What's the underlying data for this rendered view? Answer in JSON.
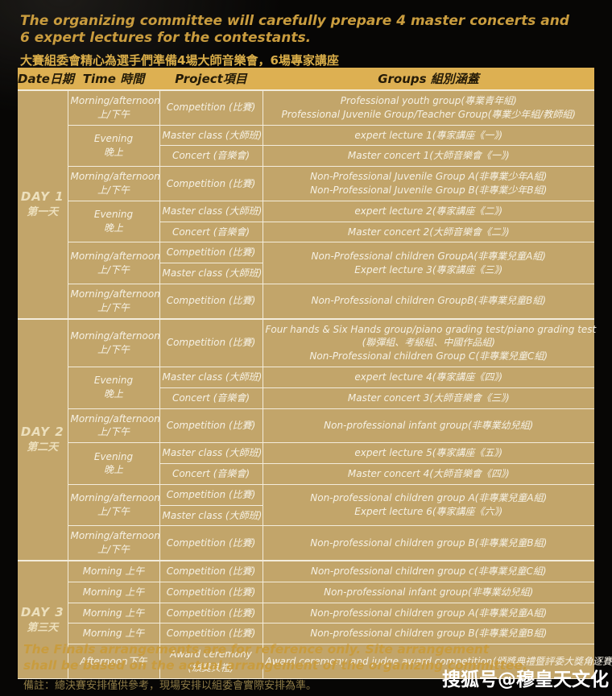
{
  "title": {
    "en_line1": "The organizing committee will carefully prepare 4 master concerts and",
    "en_line2": "6 expert lectures for the contestants.",
    "zh": "大賽組委會精心為選手們準備4場大師音樂會，6場專家講座"
  },
  "table": {
    "headers": [
      "Date日期",
      "Time 時間",
      "Project項目",
      "Groups 組別涵蓋"
    ],
    "days": [
      {
        "label_en": "DAY 1",
        "label_zh": "第一天",
        "rows": [
          {
            "time": {
              "lines": [
                "Morning/afternoon",
                "上/下午"
              ]
            },
            "project": {
              "lines": [
                "Competition (比賽)"
              ]
            },
            "groups": {
              "lines": [
                "Professional youth group(專業青年組)",
                "Professional Juvenile Group/Teacher Group(專業少年組/教師組)"
              ]
            }
          },
          {
            "time": {
              "lines": [
                "Evening",
                "晚上"
              ],
              "span": 2
            },
            "project": {
              "lines": [
                "Master class (大師班)"
              ]
            },
            "groups": {
              "lines": [
                "expert lecture 1(專家講座《一》)"
              ]
            }
          },
          {
            "time": null,
            "project": {
              "lines": [
                "Concert (音樂會)"
              ]
            },
            "groups": {
              "lines": [
                "Master concert 1(大師音樂會《一》)"
              ]
            }
          },
          {
            "time": {
              "lines": [
                "Morning/afternoon",
                "上/下午"
              ]
            },
            "project": {
              "lines": [
                "Competition (比賽)"
              ]
            },
            "groups": {
              "lines": [
                "Non-Professional Juvenile Group A(非專業少年A組)",
                "Non-Professional Juvenile Group B(非專業少年B組)"
              ]
            }
          },
          {
            "time": {
              "lines": [
                "Evening",
                "晚上"
              ],
              "span": 2
            },
            "project": {
              "lines": [
                "Master class (大師班)"
              ]
            },
            "groups": {
              "lines": [
                "expert lecture 2(專家講座《二》)"
              ]
            }
          },
          {
            "time": null,
            "project": {
              "lines": [
                "Concert (音樂會)"
              ]
            },
            "groups": {
              "lines": [
                "Master concert 2(大師音樂會《二》)"
              ]
            }
          },
          {
            "time": {
              "lines": [
                "Morning/afternoon",
                "上/下午"
              ],
              "span": 2
            },
            "project": {
              "lines": [
                "Competition (比賽)"
              ]
            },
            "groups": {
              "lines": [
                "Non-Professional children GroupA(非專業兒童A組)",
                "Expert lecture 3(專家講座《三》)"
              ],
              "span": 2
            }
          },
          {
            "time": null,
            "project": {
              "lines": [
                "Master class (大師班)"
              ]
            },
            "groups": null
          },
          {
            "time": {
              "lines": [
                "Morning/afternoon",
                "上/下午"
              ]
            },
            "project": {
              "lines": [
                "Competition (比賽)"
              ]
            },
            "groups": {
              "lines": [
                "Non-Professional children GroupB(非專業兒童B組)"
              ]
            }
          }
        ]
      },
      {
        "label_en": "DAY 2",
        "label_zh": "第二天",
        "rows": [
          {
            "time": {
              "lines": [
                "Morning/afternoon",
                "上/下午"
              ]
            },
            "project": {
              "lines": [
                "Competition (比賽)"
              ]
            },
            "groups": {
              "lines": [
                "Four hands & Six Hands group/piano grading test/piano grading test",
                "(聯彈組、考級組、中國作品組)",
                "Non-Professional children Group C(非專業兒童C組)"
              ]
            }
          },
          {
            "time": {
              "lines": [
                "Evening",
                "晚上"
              ],
              "span": 2
            },
            "project": {
              "lines": [
                "Master class (大師班)"
              ]
            },
            "groups": {
              "lines": [
                "expert lecture 4(專家講座《四》)"
              ]
            }
          },
          {
            "time": null,
            "project": {
              "lines": [
                "Concert (音樂會)"
              ]
            },
            "groups": {
              "lines": [
                "Master concert 3(大師音樂會《三》)"
              ]
            }
          },
          {
            "time": {
              "lines": [
                "Morning/afternoon",
                "上/下午"
              ]
            },
            "project": {
              "lines": [
                "Competition (比賽)"
              ]
            },
            "groups": {
              "lines": [
                "Non-professional infant group(非專業幼兒組)"
              ]
            }
          },
          {
            "time": {
              "lines": [
                "Evening",
                "晚上"
              ],
              "span": 2
            },
            "project": {
              "lines": [
                "Master class (大師班)"
              ]
            },
            "groups": {
              "lines": [
                "expert lecture 5(專家講座《五》)"
              ]
            }
          },
          {
            "time": null,
            "project": {
              "lines": [
                "Concert (音樂會)"
              ]
            },
            "groups": {
              "lines": [
                "Master concert 4(大師音樂會《四》)"
              ]
            }
          },
          {
            "time": {
              "lines": [
                "Morning/afternoon",
                "上/下午"
              ],
              "span": 2
            },
            "project": {
              "lines": [
                "Competition (比賽)"
              ]
            },
            "groups": {
              "lines": [
                "Non-professional children group A(非專業兒童A組)",
                "Expert lecture 6(專家講座《六》)"
              ],
              "span": 2
            }
          },
          {
            "time": null,
            "project": {
              "lines": [
                "Master class (大師班)"
              ]
            },
            "groups": null
          },
          {
            "time": {
              "lines": [
                "Morning/afternoon",
                "上/下午"
              ]
            },
            "project": {
              "lines": [
                "Competition (比賽)"
              ]
            },
            "groups": {
              "lines": [
                "Non-professional children group B(非專業兒童B組)"
              ]
            }
          }
        ]
      },
      {
        "label_en": "DAY 3",
        "label_zh": "第三天",
        "rows": [
          {
            "time": {
              "lines": [
                "Morning 上午"
              ]
            },
            "project": {
              "lines": [
                "Competition (比賽)"
              ]
            },
            "groups": {
              "lines": [
                "Non-professional children group c(非專業兒童C組)"
              ]
            }
          },
          {
            "time": {
              "lines": [
                "Morning 上午"
              ]
            },
            "project": {
              "lines": [
                "Competition (比賽)"
              ]
            },
            "groups": {
              "lines": [
                "Non-professional infant group(非專業幼兒組)"
              ]
            }
          },
          {
            "time": {
              "lines": [
                "Morning 上午"
              ]
            },
            "project": {
              "lines": [
                "Competition (比賽)"
              ]
            },
            "groups": {
              "lines": [
                "Non-professional children group A(非專業兒童A組)"
              ]
            }
          },
          {
            "time": {
              "lines": [
                "Morning 上午"
              ]
            },
            "project": {
              "lines": [
                "Competition (比賽)"
              ]
            },
            "groups": {
              "lines": [
                "Non-professional children group B(非專業兒童B組)"
              ]
            }
          },
          {
            "time": {
              "lines": [
                "Afternoon下午"
              ]
            },
            "project": {
              "lines": [
                "Award ceremony",
                "(頒獎典禮)"
              ]
            },
            "groups": {
              "lines": [
                "Award ceremony and judge award competition(頒獎典禮暨評委大獎角逐賽)"
              ]
            }
          }
        ]
      }
    ]
  },
  "footer": {
    "en_line1": "The Finals arrangements are for reference only. Site arrangement",
    "en_line2": "shall be based on the actual arrangement of the organizing committee.",
    "zh": "備註：總決賽安排僅供參考，現場安排以組委會實際安排為準。"
  },
  "watermark": "搜狐号@穆皇天文化",
  "colors": {
    "header_bg": "#ddb052",
    "cell_bg": "#c2a56a",
    "grid": "#f3ecdb",
    "cell_text": "#f6f1e4",
    "date_text": "#ecdfbc",
    "header_text": "#241b08",
    "title_gold": "#c99c3e",
    "title_zh_gold": "#d9ad48",
    "footer_zh": "#8d7a45",
    "watermark": "#ffffff"
  }
}
